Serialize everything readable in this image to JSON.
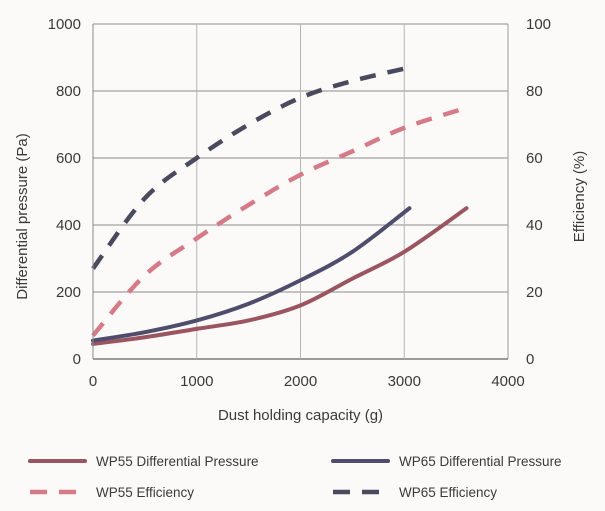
{
  "chart_data": {
    "type": "line",
    "xlabel": "Dust holding capacity (g)",
    "ylabel": "Differential pressure (Pa)",
    "y2label": "Efficiency (%)",
    "xlim": [
      0,
      4000
    ],
    "ylim": [
      0,
      1000
    ],
    "y2lim": [
      0,
      100
    ],
    "xticks": [
      "0",
      "1000",
      "2000",
      "3000",
      "4000"
    ],
    "yticks": [
      "0",
      "200",
      "400",
      "600",
      "800",
      "1000"
    ],
    "y2ticks": [
      "0",
      "20",
      "40",
      "60",
      "80",
      "100"
    ],
    "grid": true,
    "legend_position": "bottom",
    "series": [
      {
        "name": "WP55 Differential Pressure",
        "axis": "left",
        "style": "solid",
        "color": "#9a5560",
        "x": [
          0,
          500,
          1000,
          1500,
          2000,
          2500,
          3000,
          3600
        ],
        "y": [
          45,
          65,
          90,
          115,
          160,
          240,
          320,
          450
        ]
      },
      {
        "name": "WP65 Differential Pressure",
        "axis": "left",
        "style": "solid",
        "color": "#4e4e6c",
        "x": [
          0,
          500,
          1000,
          1500,
          2000,
          2500,
          3050
        ],
        "y": [
          55,
          80,
          115,
          165,
          235,
          320,
          450
        ]
      },
      {
        "name": "WP55 Efficiency",
        "axis": "right",
        "style": "dashed",
        "color": "#d67a88",
        "x": [
          0,
          500,
          1000,
          1500,
          2000,
          2500,
          3000,
          3600
        ],
        "y": [
          7,
          25,
          36,
          46,
          55,
          62,
          69,
          75
        ]
      },
      {
        "name": "WP65 Efficiency",
        "axis": "right",
        "style": "dashed",
        "color": "#4a4a5e",
        "x": [
          0,
          500,
          1000,
          1500,
          2000,
          2500,
          3050
        ],
        "y": [
          27,
          48,
          60,
          70,
          78,
          83,
          87
        ]
      }
    ]
  }
}
